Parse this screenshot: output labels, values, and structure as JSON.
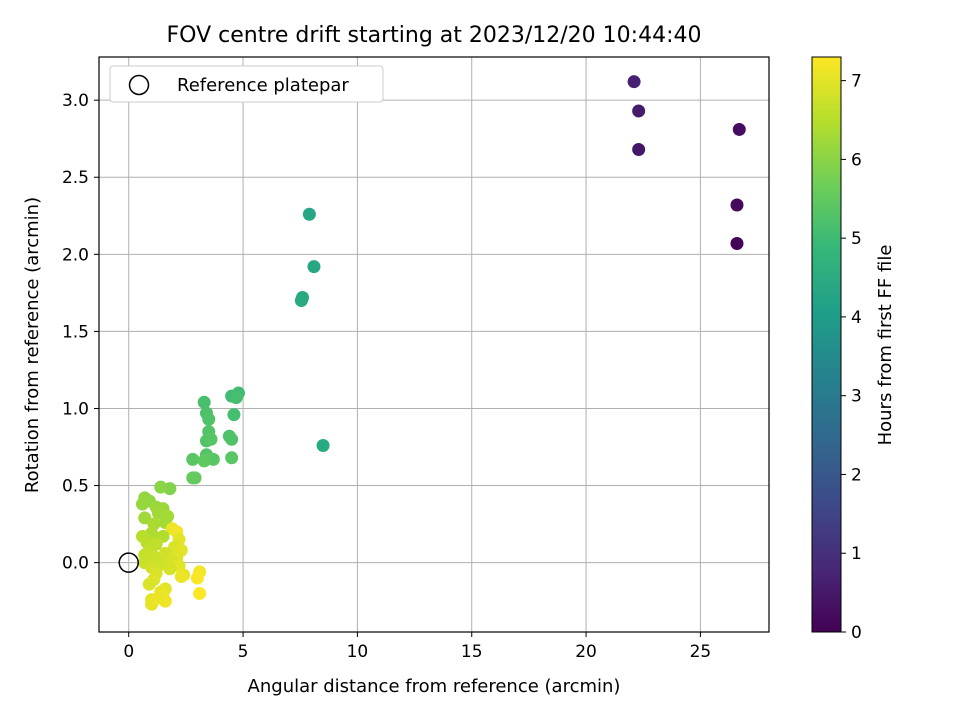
{
  "chart_data": {
    "type": "scatter",
    "title": "FOV centre drift starting at 2023/12/20 10:44:40",
    "xlabel": "Angular distance from reference (arcmin)",
    "ylabel": "Rotation from reference (arcmin)",
    "xlim": [
      -1.3,
      28
    ],
    "ylim": [
      -0.45,
      3.28
    ],
    "xticks": [
      0,
      5,
      10,
      15,
      20,
      25
    ],
    "yticks": [
      0.0,
      0.5,
      1.0,
      1.5,
      2.0,
      2.5,
      3.0
    ],
    "xtick_labels": [
      "0",
      "5",
      "10",
      "15",
      "20",
      "25"
    ],
    "ytick_labels": [
      "0.0",
      "0.5",
      "1.0",
      "1.5",
      "2.0",
      "2.5",
      "3.0"
    ],
    "grid": true,
    "legend": {
      "position": "top-left",
      "entries": [
        "Reference platepar"
      ]
    },
    "reference_point": {
      "x": 0,
      "y": 0,
      "label": "Reference platepar",
      "marker": "open-circle",
      "color": "#000000"
    },
    "colorbar": {
      "label": "Hours from first FF file",
      "min": 0,
      "max": 7.3,
      "ticks": [
        0,
        1,
        2,
        3,
        4,
        5,
        6,
        7
      ],
      "tick_labels": [
        "0",
        "1",
        "2",
        "3",
        "4",
        "5",
        "6",
        "7"
      ],
      "colormap": "viridis",
      "stops": [
        "#440154",
        "#482878",
        "#3e4989",
        "#31688e",
        "#26828e",
        "#1f9e89",
        "#35b779",
        "#6ece58",
        "#b5de2b",
        "#fde725"
      ]
    },
    "points": [
      {
        "x": 26.6,
        "y": 2.07,
        "c": 0.05
      },
      {
        "x": 26.6,
        "y": 2.32,
        "c": 0.15
      },
      {
        "x": 26.7,
        "y": 2.81,
        "c": 0.25
      },
      {
        "x": 22.3,
        "y": 2.68,
        "c": 0.45
      },
      {
        "x": 22.3,
        "y": 2.93,
        "c": 0.55
      },
      {
        "x": 22.1,
        "y": 3.12,
        "c": 0.65
      },
      {
        "x": 7.9,
        "y": 2.26,
        "c": 4.3
      },
      {
        "x": 8.1,
        "y": 1.92,
        "c": 4.35
      },
      {
        "x": 7.6,
        "y": 1.72,
        "c": 4.4
      },
      {
        "x": 7.55,
        "y": 1.7,
        "c": 4.45
      },
      {
        "x": 8.5,
        "y": 0.76,
        "c": 4.4
      },
      {
        "x": 4.8,
        "y": 1.1,
        "c": 5.0
      },
      {
        "x": 4.5,
        "y": 1.08,
        "c": 5.05
      },
      {
        "x": 4.7,
        "y": 1.07,
        "c": 5.1
      },
      {
        "x": 3.3,
        "y": 1.04,
        "c": 5.15
      },
      {
        "x": 3.4,
        "y": 0.97,
        "c": 5.2
      },
      {
        "x": 4.6,
        "y": 0.96,
        "c": 5.1
      },
      {
        "x": 3.5,
        "y": 0.93,
        "c": 5.25
      },
      {
        "x": 3.5,
        "y": 0.85,
        "c": 5.3
      },
      {
        "x": 4.4,
        "y": 0.82,
        "c": 5.2
      },
      {
        "x": 4.5,
        "y": 0.8,
        "c": 5.25
      },
      {
        "x": 3.4,
        "y": 0.79,
        "c": 5.3
      },
      {
        "x": 3.6,
        "y": 0.8,
        "c": 5.35
      },
      {
        "x": 3.4,
        "y": 0.7,
        "c": 5.3
      },
      {
        "x": 3.5,
        "y": 0.68,
        "c": 5.35
      },
      {
        "x": 2.8,
        "y": 0.67,
        "c": 5.4
      },
      {
        "x": 3.7,
        "y": 0.67,
        "c": 5.4
      },
      {
        "x": 3.3,
        "y": 0.66,
        "c": 5.45
      },
      {
        "x": 4.5,
        "y": 0.68,
        "c": 5.4
      },
      {
        "x": 2.9,
        "y": 0.55,
        "c": 5.5
      },
      {
        "x": 2.8,
        "y": 0.55,
        "c": 5.55
      },
      {
        "x": 1.8,
        "y": 0.48,
        "c": 5.9
      },
      {
        "x": 1.4,
        "y": 0.49,
        "c": 6.0
      },
      {
        "x": 0.7,
        "y": 0.42,
        "c": 6.1
      },
      {
        "x": 0.9,
        "y": 0.4,
        "c": 6.1
      },
      {
        "x": 0.6,
        "y": 0.38,
        "c": 6.15
      },
      {
        "x": 1.2,
        "y": 0.36,
        "c": 6.2
      },
      {
        "x": 1.5,
        "y": 0.35,
        "c": 6.2
      },
      {
        "x": 1.3,
        "y": 0.32,
        "c": 6.25
      },
      {
        "x": 1.7,
        "y": 0.3,
        "c": 6.3
      },
      {
        "x": 0.7,
        "y": 0.29,
        "c": 6.25
      },
      {
        "x": 1.6,
        "y": 0.26,
        "c": 6.3
      },
      {
        "x": 1.1,
        "y": 0.25,
        "c": 6.35
      },
      {
        "x": 1.9,
        "y": 0.22,
        "c": 7.1
      },
      {
        "x": 1.0,
        "y": 0.19,
        "c": 6.4
      },
      {
        "x": 2.1,
        "y": 0.2,
        "c": 7.15
      },
      {
        "x": 1.5,
        "y": 0.17,
        "c": 6.45
      },
      {
        "x": 0.6,
        "y": 0.17,
        "c": 6.5
      },
      {
        "x": 2.2,
        "y": 0.15,
        "c": 7.0
      },
      {
        "x": 0.8,
        "y": 0.13,
        "c": 6.55
      },
      {
        "x": 1.2,
        "y": 0.12,
        "c": 6.6
      },
      {
        "x": 2.0,
        "y": 0.1,
        "c": 6.9
      },
      {
        "x": 0.9,
        "y": 0.08,
        "c": 6.6
      },
      {
        "x": 2.3,
        "y": 0.08,
        "c": 7.0
      },
      {
        "x": 1.6,
        "y": 0.06,
        "c": 6.8
      },
      {
        "x": 0.7,
        "y": 0.05,
        "c": 6.65
      },
      {
        "x": 1.1,
        "y": 0.04,
        "c": 6.7
      },
      {
        "x": 2.1,
        "y": 0.03,
        "c": 6.95
      },
      {
        "x": 1.9,
        "y": 0.01,
        "c": 6.85
      },
      {
        "x": 0.7,
        "y": 0.0,
        "c": 6.7
      },
      {
        "x": 1.4,
        "y": -0.01,
        "c": 6.75
      },
      {
        "x": 2.2,
        "y": -0.02,
        "c": 7.0
      },
      {
        "x": 1.0,
        "y": -0.03,
        "c": 6.8
      },
      {
        "x": 1.8,
        "y": -0.04,
        "c": 6.85
      },
      {
        "x": 3.1,
        "y": -0.06,
        "c": 7.2
      },
      {
        "x": 1.2,
        "y": -0.07,
        "c": 6.9
      },
      {
        "x": 2.4,
        "y": -0.08,
        "c": 7.05
      },
      {
        "x": 3.0,
        "y": -0.1,
        "c": 7.25
      },
      {
        "x": 2.3,
        "y": -0.09,
        "c": 7.1
      },
      {
        "x": 1.1,
        "y": -0.11,
        "c": 6.95
      },
      {
        "x": 0.9,
        "y": -0.14,
        "c": 6.9
      },
      {
        "x": 1.6,
        "y": -0.17,
        "c": 7.0
      },
      {
        "x": 1.4,
        "y": -0.19,
        "c": 7.05
      },
      {
        "x": 3.1,
        "y": -0.2,
        "c": 7.3
      },
      {
        "x": 1.5,
        "y": -0.22,
        "c": 7.1
      },
      {
        "x": 1.0,
        "y": -0.24,
        "c": 7.0
      },
      {
        "x": 1.6,
        "y": -0.25,
        "c": 7.15
      },
      {
        "x": 1.0,
        "y": -0.27,
        "c": 7.05
      },
      {
        "x": 1.3,
        "y": -0.23,
        "c": 7.1
      }
    ]
  }
}
